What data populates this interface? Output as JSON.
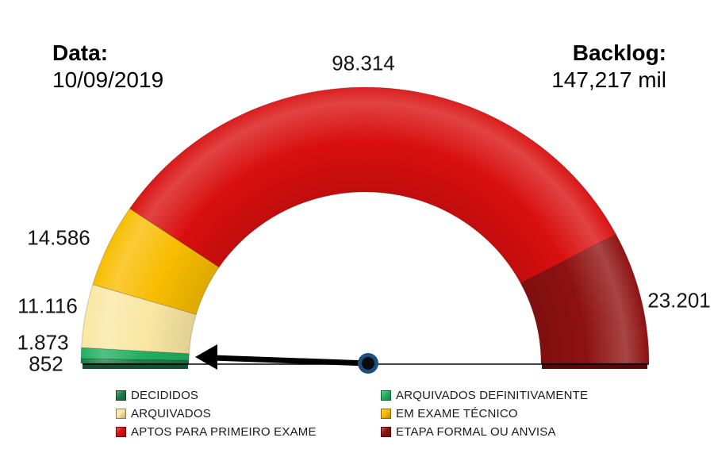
{
  "header": {
    "date_label": "Data:",
    "date_value": "10/09/2019",
    "backlog_label": "Backlog:",
    "backlog_value": "147,217 mil"
  },
  "chart_data": {
    "type": "pie",
    "variant": "half-donut-gauge",
    "title": "",
    "start_angle_deg": 180,
    "end_angle_deg": 0,
    "total": 149942,
    "legend_position": "bottom-two-columns",
    "series": [
      {
        "name": "DECIDIDOS",
        "value": 852,
        "display": "852",
        "color": "#1E7B47"
      },
      {
        "name": "ARQUIVADOS DEFINITIVAMENTE",
        "value": 1873,
        "display": "1.873",
        "color": "#21B061"
      },
      {
        "name": "ARQUIVADOS",
        "value": 11116,
        "display": "11.116",
        "color": "#FAE7A3"
      },
      {
        "name": "EM EXAME TÉCNICO",
        "value": 14586,
        "display": "14.586",
        "color": "#F8BC00"
      },
      {
        "name": "APTOS PARA PRIMEIRO EXAME",
        "value": 98314,
        "display": "98.314",
        "color": "#D90E0E"
      },
      {
        "name": "ETAPA FORMAL OU ANVISA",
        "value": 23201,
        "display": "23.201",
        "color": "#8E1111"
      }
    ],
    "needle": {
      "direction": "left",
      "color": "#000000",
      "pivot_color": "#1C4E80"
    }
  }
}
